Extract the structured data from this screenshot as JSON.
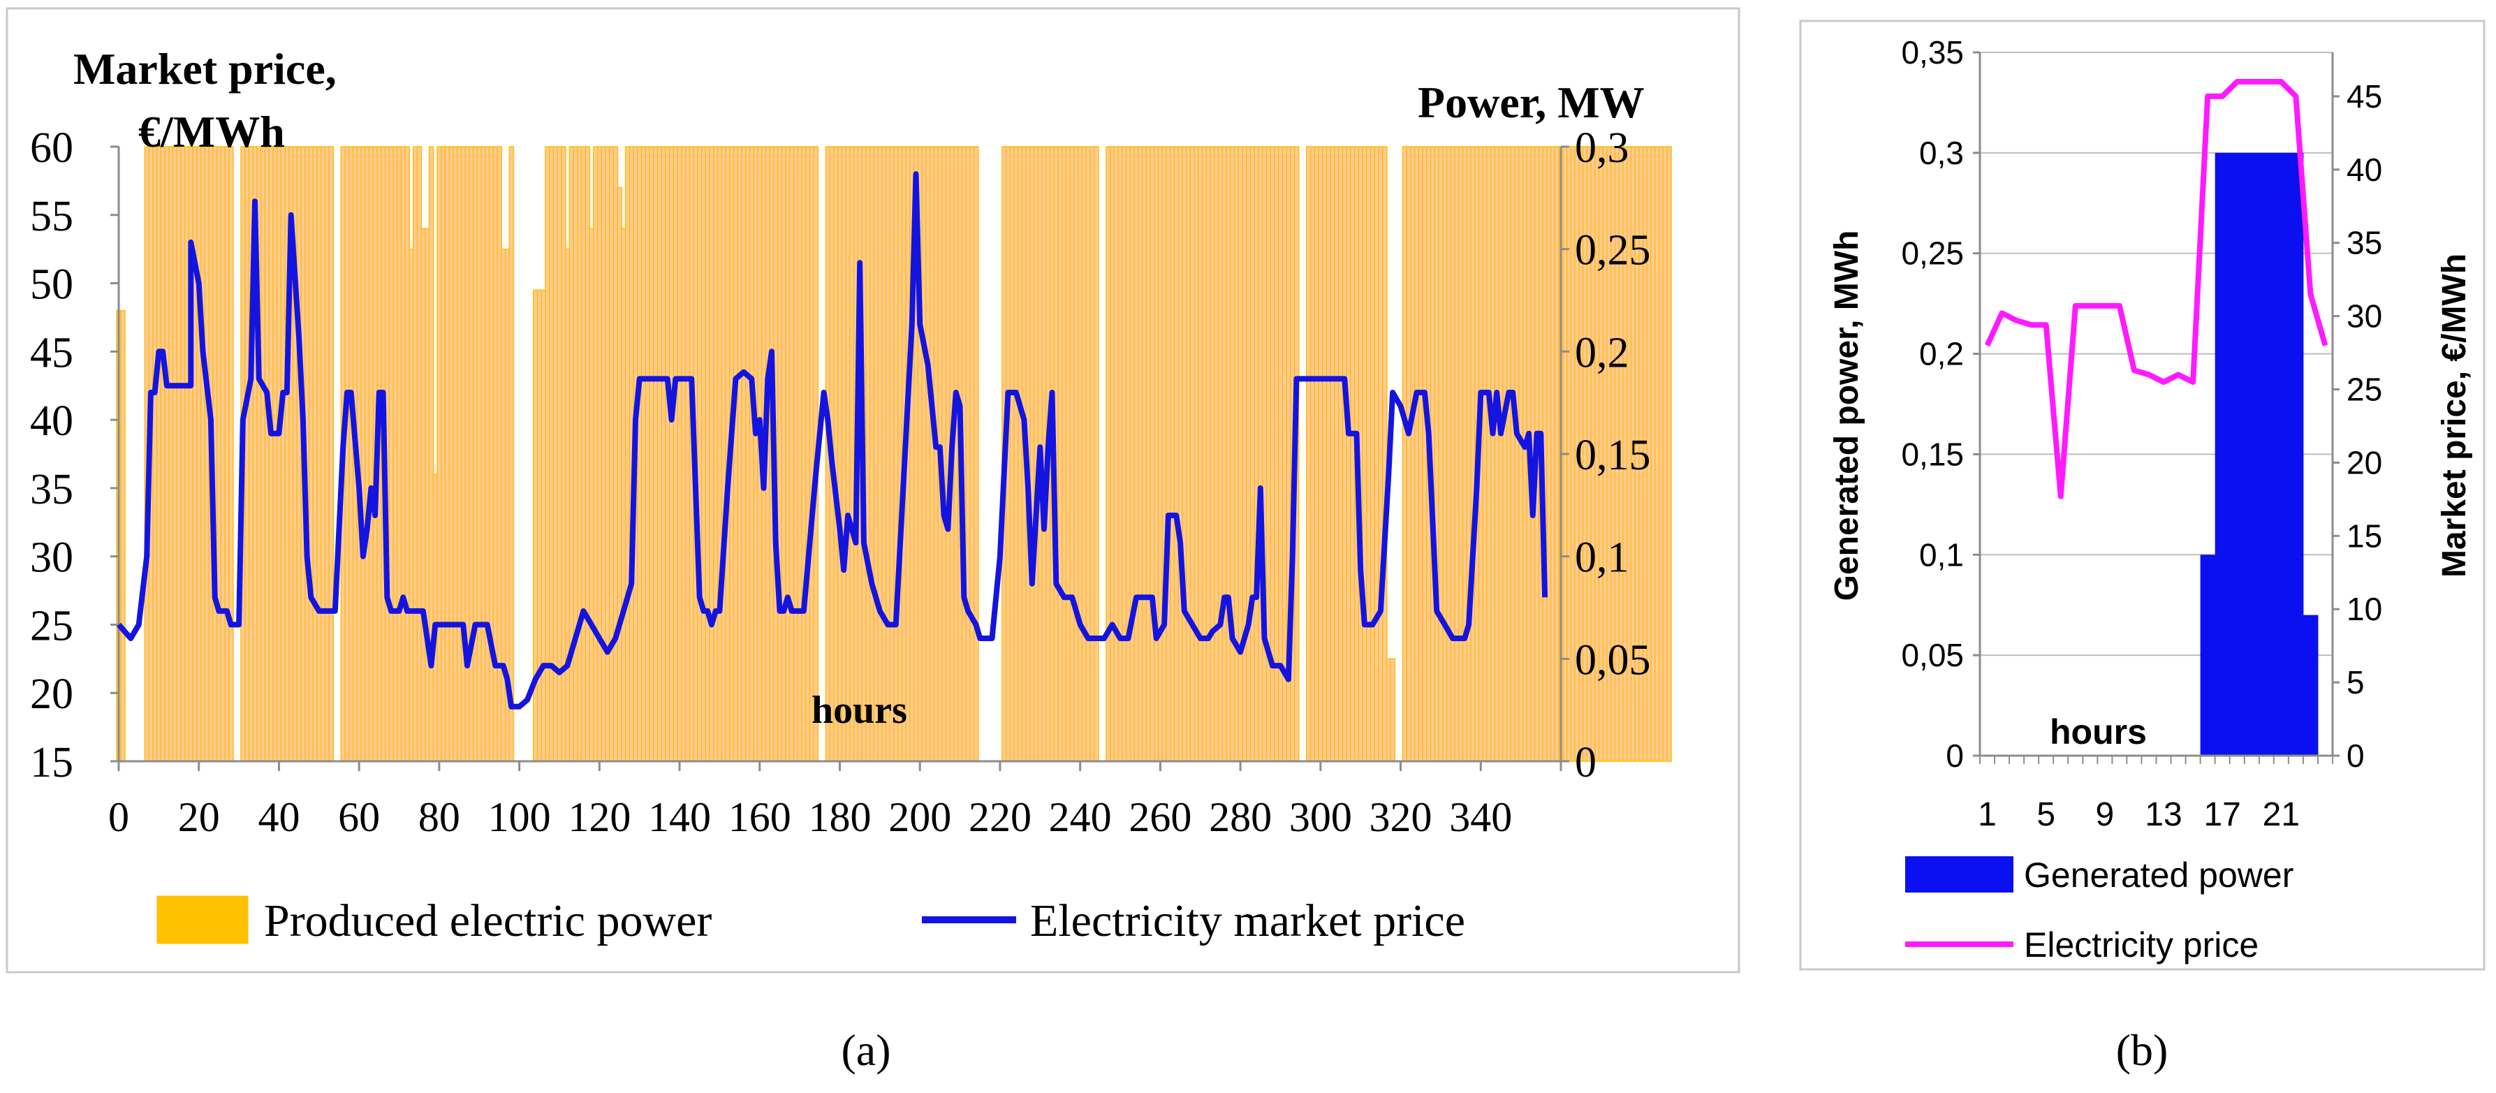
{
  "chart_data": [
    {
      "panel_label": "(a)",
      "type": "bar+line",
      "title_left": "Market price,",
      "title_left_unit": "€/MWh",
      "title_right": "Power, MW",
      "xlabel": "hours",
      "x_ticks": [
        "0",
        "20",
        "40",
        "60",
        "80",
        "100",
        "120",
        "140",
        "160",
        "180",
        "200",
        "220",
        "240",
        "260",
        "280",
        "300",
        "320",
        "340"
      ],
      "y_left_ticks": [
        "15",
        "20",
        "25",
        "30",
        "35",
        "40",
        "45",
        "50",
        "55",
        "60"
      ],
      "y_right_ticks": [
        "0",
        "0,05",
        "0,1",
        "0,15",
        "0,2",
        "0,25",
        "0,3"
      ],
      "ylim_left": [
        15,
        60
      ],
      "ylim_right": [
        0,
        0.3
      ],
      "xlim": [
        0,
        360
      ],
      "legend": [
        "Produced electric power",
        "Electricity market price"
      ],
      "bar_color": "#ffc000",
      "line_color": "#1414e0",
      "power_MW": [
        0.22,
        0.22,
        0,
        0,
        0,
        0,
        0,
        0.3,
        0.3,
        0.3,
        0.3,
        0.3,
        0.3,
        0.3,
        0.3,
        0.3,
        0.3,
        0.3,
        0.3,
        0.3,
        0.3,
        0.3,
        0.3,
        0.3,
        0.3,
        0.3,
        0.3,
        0.3,
        0.3,
        0,
        0,
        0.3,
        0.3,
        0.3,
        0.3,
        0.3,
        0.3,
        0.3,
        0.3,
        0.3,
        0.3,
        0.3,
        0.3,
        0.3,
        0.3,
        0.3,
        0.3,
        0.3,
        0.3,
        0.3,
        0.3,
        0.3,
        0.3,
        0.3,
        0,
        0,
        0.3,
        0.3,
        0.3,
        0.3,
        0.3,
        0.3,
        0.3,
        0.3,
        0.3,
        0.3,
        0.3,
        0.3,
        0.3,
        0.3,
        0.3,
        0.3,
        0.3,
        0.25,
        0.3,
        0.3,
        0.26,
        0.26,
        0.3,
        0.14,
        0.3,
        0.3,
        0.3,
        0.3,
        0.3,
        0.3,
        0.3,
        0.3,
        0.3,
        0.3,
        0.3,
        0.3,
        0.3,
        0.3,
        0.3,
        0.3,
        0.25,
        0.25,
        0.3,
        0,
        0,
        0,
        0,
        0,
        0.23,
        0.23,
        0.23,
        0.3,
        0.3,
        0.3,
        0.3,
        0.3,
        0.25,
        0.3,
        0.3,
        0.3,
        0.3,
        0.3,
        0.26,
        0.3,
        0.3,
        0.3,
        0.3,
        0.3,
        0.3,
        0.28,
        0.26,
        0.3,
        0.3,
        0.3,
        0.3,
        0.3,
        0.3,
        0.3,
        0.3,
        0.3,
        0.3,
        0.3,
        0.3,
        0.3,
        0.3,
        0.3,
        0.3,
        0.3,
        0.3,
        0.3,
        0.3,
        0.3,
        0.3,
        0.3,
        0.3,
        0.3,
        0.3,
        0.3,
        0.3,
        0.3,
        0.3,
        0.3,
        0.3,
        0.3,
        0.3,
        0.3,
        0.3,
        0.3,
        0.3,
        0.3,
        0.3,
        0.3,
        0.3,
        0.3,
        0.3,
        0.3,
        0.3,
        0.3,
        0.3,
        0,
        0,
        0.3,
        0.3,
        0.3,
        0.3,
        0.3,
        0.3,
        0.3,
        0.3,
        0.3,
        0.3,
        0.3,
        0.3,
        0.3,
        0.3,
        0.3,
        0.3,
        0.3,
        0.3,
        0.3,
        0.3,
        0.3,
        0.3,
        0.3,
        0.3,
        0.3,
        0.3,
        0.3,
        0.3,
        0.3,
        0.3,
        0.3,
        0.3,
        0.3,
        0.3,
        0.3,
        0.3,
        0.3,
        0.3,
        0,
        0,
        0,
        0,
        0,
        0,
        0.3,
        0.3,
        0.3,
        0.3,
        0.3,
        0.3,
        0.3,
        0.3,
        0.3,
        0.3,
        0.3,
        0.3,
        0.3,
        0.3,
        0.3,
        0.3,
        0.3,
        0.3,
        0.3,
        0.3,
        0.3,
        0.3,
        0.3,
        0.3,
        0,
        0,
        0.3,
        0.3,
        0.3,
        0.3,
        0.3,
        0.3,
        0.3,
        0.3,
        0.3,
        0.3,
        0.3,
        0.3,
        0.3,
        0.3,
        0.3,
        0.3,
        0.3,
        0.3,
        0.3,
        0.3,
        0.3,
        0.3,
        0.3,
        0.3,
        0.3,
        0.3,
        0.3,
        0.3,
        0.3,
        0.3,
        0.3,
        0.3,
        0.3,
        0.3,
        0.3,
        0.3,
        0.3,
        0.3,
        0.3,
        0.3,
        0.3,
        0.3,
        0.3,
        0.3,
        0.3,
        0.3,
        0.3,
        0.3,
        0,
        0,
        0.3,
        0.3,
        0.3,
        0.3,
        0.3,
        0.3,
        0.3,
        0.3,
        0.3,
        0.3,
        0.3,
        0.3,
        0.3,
        0.3,
        0.3,
        0.3,
        0.3,
        0.3,
        0.3,
        0.3,
        0.05,
        0.05,
        0,
        0,
        0.3,
        0.3,
        0.3,
        0.3,
        0.3,
        0.3,
        0.3,
        0.3,
        0.3,
        0.3,
        0.3,
        0.3,
        0.3,
        0.3,
        0.3,
        0.3,
        0.3,
        0.3,
        0.3,
        0.3,
        0.3,
        0.3,
        0.3,
        0.3,
        0.3,
        0.3,
        0.3,
        0.3,
        0.3,
        0.3,
        0.3,
        0.3,
        0.3,
        0.3,
        0.3,
        0.3,
        0.3,
        0.3,
        0.3,
        0.3,
        0.3,
        0.3,
        0.3,
        0.3,
        0.3,
        0.3,
        0.3,
        0.3,
        0.3,
        0.3,
        0.3,
        0.3,
        0.3,
        0.3,
        0.3,
        0.3,
        0.3,
        0.3,
        0.3,
        0.3,
        0.3,
        0.3,
        0.3,
        0.3,
        0.3,
        0.3,
        0.3
      ],
      "price_points": [
        [
          0,
          25
        ],
        [
          3,
          24
        ],
        [
          5,
          25
        ],
        [
          7,
          30
        ],
        [
          8,
          42
        ],
        [
          9,
          42
        ],
        [
          10,
          45
        ],
        [
          11,
          45
        ],
        [
          12,
          42.5
        ],
        [
          18,
          42.5
        ],
        [
          18,
          53
        ],
        [
          20,
          50
        ],
        [
          21,
          45
        ],
        [
          23,
          40
        ],
        [
          24,
          27
        ],
        [
          25,
          26
        ],
        [
          27,
          26
        ],
        [
          28,
          25
        ],
        [
          30,
          25
        ],
        [
          31,
          40
        ],
        [
          33,
          43
        ],
        [
          34,
          56
        ],
        [
          35,
          43
        ],
        [
          37,
          42
        ],
        [
          38,
          39
        ],
        [
          40,
          39
        ],
        [
          41,
          42
        ],
        [
          42,
          42
        ],
        [
          43,
          55
        ],
        [
          45,
          46
        ],
        [
          46,
          40
        ],
        [
          47,
          30
        ],
        [
          48,
          27
        ],
        [
          50,
          26
        ],
        [
          52,
          26
        ],
        [
          54,
          26
        ],
        [
          56,
          38
        ],
        [
          57,
          42
        ],
        [
          58,
          42
        ],
        [
          60,
          35
        ],
        [
          61,
          30
        ],
        [
          62,
          32
        ],
        [
          63,
          35
        ],
        [
          64,
          33
        ],
        [
          65,
          42
        ],
        [
          66,
          42
        ],
        [
          67,
          27
        ],
        [
          68,
          26
        ],
        [
          70,
          26
        ],
        [
          71,
          27
        ],
        [
          72,
          26
        ],
        [
          75,
          26
        ],
        [
          76,
          26
        ],
        [
          78,
          22
        ],
        [
          79,
          25
        ],
        [
          80,
          25
        ],
        [
          86,
          25
        ],
        [
          87,
          22
        ],
        [
          89,
          25
        ],
        [
          92,
          25
        ],
        [
          94,
          22
        ],
        [
          96,
          22
        ],
        [
          97,
          21
        ],
        [
          98,
          19
        ],
        [
          100,
          19
        ],
        [
          102,
          19.5
        ],
        [
          104,
          21
        ],
        [
          106,
          22
        ],
        [
          108,
          22
        ],
        [
          110,
          21.5
        ],
        [
          112,
          22
        ],
        [
          114,
          24
        ],
        [
          116,
          26
        ],
        [
          118,
          25
        ],
        [
          120,
          24
        ],
        [
          122,
          23
        ],
        [
          124,
          24
        ],
        [
          126,
          26
        ],
        [
          128,
          28
        ],
        [
          129,
          40
        ],
        [
          130,
          43
        ],
        [
          137,
          43
        ],
        [
          138,
          40
        ],
        [
          139,
          43
        ],
        [
          143,
          43
        ],
        [
          144,
          35
        ],
        [
          145,
          27
        ],
        [
          146,
          26
        ],
        [
          147,
          26
        ],
        [
          148,
          25
        ],
        [
          149,
          26
        ],
        [
          150,
          26
        ],
        [
          152,
          35
        ],
        [
          154,
          43
        ],
        [
          156,
          43.5
        ],
        [
          158,
          43
        ],
        [
          159,
          39
        ],
        [
          160,
          40
        ],
        [
          161,
          35
        ],
        [
          162,
          43
        ],
        [
          163,
          45
        ],
        [
          164,
          31
        ],
        [
          165,
          26
        ],
        [
          166,
          26
        ],
        [
          167,
          27
        ],
        [
          168,
          26
        ],
        [
          170,
          26
        ],
        [
          171,
          26
        ],
        [
          174,
          36
        ],
        [
          176,
          42
        ],
        [
          177,
          40
        ],
        [
          178,
          37
        ],
        [
          180,
          32
        ],
        [
          181,
          29
        ],
        [
          182,
          33
        ],
        [
          184,
          31
        ],
        [
          185,
          51.5
        ],
        [
          186,
          31
        ],
        [
          188,
          28
        ],
        [
          190,
          26
        ],
        [
          192,
          25
        ],
        [
          194,
          25
        ],
        [
          196,
          36
        ],
        [
          198,
          47
        ],
        [
          199,
          58
        ],
        [
          200,
          47
        ],
        [
          202,
          44
        ],
        [
          204,
          38
        ],
        [
          205,
          38
        ],
        [
          206,
          33
        ],
        [
          207,
          32
        ],
        [
          208,
          38
        ],
        [
          209,
          42
        ],
        [
          210,
          41
        ],
        [
          211,
          27
        ],
        [
          212,
          26
        ],
        [
          214,
          25
        ],
        [
          215,
          24
        ],
        [
          216,
          24
        ],
        [
          218,
          24
        ],
        [
          220,
          30
        ],
        [
          222,
          42
        ],
        [
          224,
          42
        ],
        [
          226,
          40
        ],
        [
          227,
          35
        ],
        [
          228,
          28
        ],
        [
          230,
          38
        ],
        [
          231,
          32
        ],
        [
          232,
          38
        ],
        [
          233,
          42
        ],
        [
          234,
          28
        ],
        [
          236,
          27
        ],
        [
          238,
          27
        ],
        [
          240,
          25
        ],
        [
          242,
          24
        ],
        [
          244,
          24
        ],
        [
          246,
          24
        ],
        [
          248,
          25
        ],
        [
          250,
          24
        ],
        [
          252,
          24
        ],
        [
          254,
          27
        ],
        [
          256,
          27
        ],
        [
          258,
          27
        ],
        [
          259,
          24
        ],
        [
          261,
          25
        ],
        [
          262,
          33
        ],
        [
          264,
          33
        ],
        [
          265,
          31
        ],
        [
          266,
          26
        ],
        [
          268,
          25
        ],
        [
          270,
          24
        ],
        [
          272,
          24
        ],
        [
          273,
          24.5
        ],
        [
          275,
          25
        ],
        [
          276,
          27
        ],
        [
          277,
          27
        ],
        [
          278,
          24
        ],
        [
          280,
          23
        ],
        [
          282,
          25
        ],
        [
          283,
          27
        ],
        [
          284,
          27
        ],
        [
          285,
          35
        ],
        [
          286,
          24
        ],
        [
          288,
          22
        ],
        [
          290,
          22
        ],
        [
          292,
          21
        ],
        [
          293,
          30
        ],
        [
          294,
          43
        ],
        [
          298,
          43
        ],
        [
          302,
          43
        ],
        [
          306,
          43
        ],
        [
          307,
          39
        ],
        [
          309,
          39
        ],
        [
          310,
          29
        ],
        [
          311,
          25
        ],
        [
          313,
          25
        ],
        [
          315,
          26
        ],
        [
          317,
          36
        ],
        [
          318,
          42
        ],
        [
          320,
          41
        ],
        [
          322,
          39
        ],
        [
          324,
          42
        ],
        [
          326,
          42
        ],
        [
          327,
          39
        ],
        [
          329,
          26
        ],
        [
          331,
          25
        ],
        [
          333,
          24
        ],
        [
          335,
          24
        ],
        [
          336,
          24
        ],
        [
          337,
          25
        ],
        [
          339,
          35
        ],
        [
          340,
          42
        ],
        [
          342,
          42
        ],
        [
          343,
          39
        ],
        [
          344,
          42
        ],
        [
          345,
          39
        ],
        [
          347,
          42
        ],
        [
          348,
          42
        ],
        [
          349,
          39
        ],
        [
          351,
          38
        ],
        [
          352,
          39
        ],
        [
          353,
          33
        ],
        [
          354,
          39
        ],
        [
          355,
          39
        ],
        [
          356,
          27
        ]
      ]
    },
    {
      "panel_label": "(b)",
      "type": "bar+line",
      "xlabel": "hours",
      "ylabel_left": "Generated power, MWh",
      "ylabel_right": "Market price, €/MWh",
      "x_ticks": [
        "1",
        "5",
        "9",
        "13",
        "17",
        "21"
      ],
      "y_left_ticks": [
        "0",
        "0,05",
        "0,1",
        "0,15",
        "0,2",
        "0,25",
        "0,3",
        "0,35"
      ],
      "y_right_ticks": [
        "0",
        "5",
        "10",
        "15",
        "20",
        "25",
        "30",
        "35",
        "40",
        "45"
      ],
      "ylim_left": [
        0,
        0.35
      ],
      "ylim_right": [
        0,
        48
      ],
      "legend": [
        "Generated power",
        "Electricity price"
      ],
      "bar_color": "#0b10f0",
      "line_color": "#ff1aff",
      "hours": [
        1,
        2,
        3,
        4,
        5,
        6,
        7,
        8,
        9,
        10,
        11,
        12,
        13,
        14,
        15,
        16,
        17,
        18,
        19,
        20,
        21,
        22,
        23,
        24
      ],
      "generated_power_MWh": [
        0,
        0,
        0,
        0,
        0,
        0,
        0,
        0,
        0,
        0,
        0,
        0,
        0,
        0,
        0,
        0.1,
        0.3,
        0.3,
        0.3,
        0.3,
        0.3,
        0.3,
        0.07,
        0
      ],
      "price_EUR_MWh": [
        28,
        30.2,
        29.7,
        29.4,
        29.4,
        17.7,
        30.7,
        30.7,
        30.7,
        30.7,
        26.3,
        26,
        25.5,
        26,
        25.5,
        45,
        45,
        46,
        46,
        46,
        46,
        45,
        31.5,
        28
      ]
    }
  ]
}
